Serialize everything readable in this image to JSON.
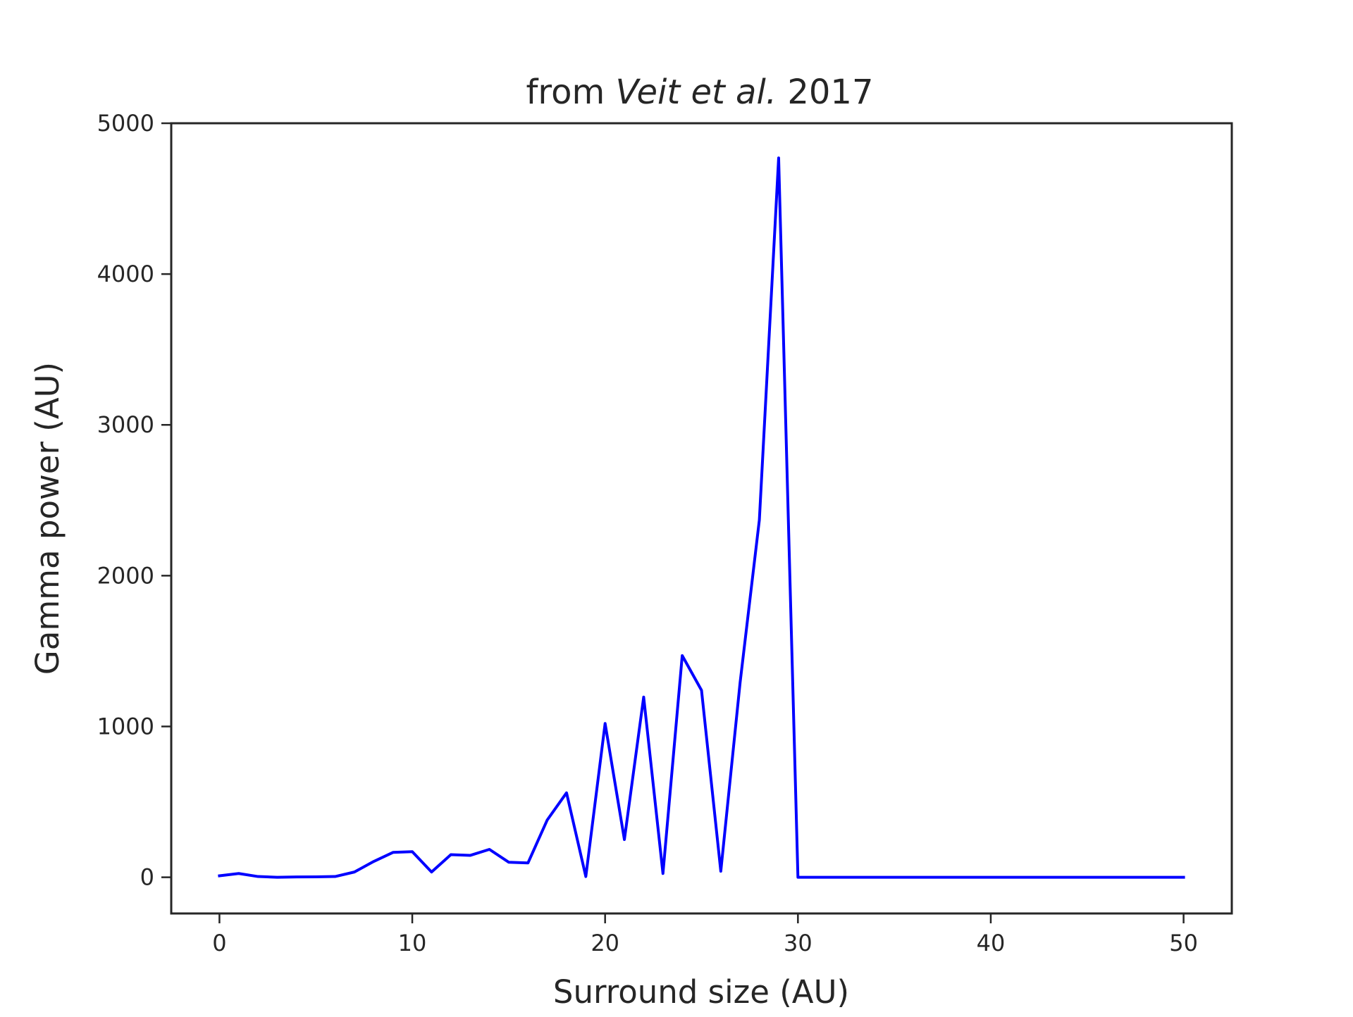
{
  "chart_data": {
    "type": "line",
    "title_parts": [
      {
        "text": "from ",
        "italic": false
      },
      {
        "text": "Veit et al.",
        "italic": true
      },
      {
        "text": "  2017",
        "italic": false
      }
    ],
    "title": "from Veit et al.  2017",
    "xlabel": "Surround size (AU)",
    "ylabel": "Gamma power (AU)",
    "xlim": [
      -2.5,
      52.5
    ],
    "ylim": [
      -240,
      5000
    ],
    "xticks": [
      0,
      10,
      20,
      30,
      40,
      50
    ],
    "yticks": [
      0,
      1000,
      2000,
      3000,
      4000,
      5000
    ],
    "grid": false,
    "series": [
      {
        "color": "#0000ff",
        "x": [
          0,
          1,
          2,
          3,
          4,
          5,
          6,
          7,
          8,
          9,
          10,
          11,
          12,
          13,
          14,
          15,
          16,
          17,
          18,
          19,
          20,
          21,
          22,
          23,
          24,
          25,
          26,
          27,
          28,
          29,
          30,
          31,
          32,
          33,
          34,
          35,
          36,
          37,
          38,
          39,
          40,
          41,
          42,
          43,
          44,
          45,
          46,
          47,
          48,
          49,
          50
        ],
        "y": [
          10,
          25,
          5,
          0,
          2,
          3,
          5,
          35,
          105,
          165,
          170,
          35,
          150,
          145,
          185,
          100,
          95,
          380,
          560,
          5,
          1020,
          250,
          1195,
          25,
          1470,
          1240,
          40,
          1290,
          2370,
          4770,
          0,
          0,
          0,
          0,
          0,
          0,
          0,
          0,
          0,
          0,
          0,
          0,
          0,
          0,
          0,
          0,
          0,
          0,
          0,
          0,
          0
        ]
      }
    ]
  }
}
